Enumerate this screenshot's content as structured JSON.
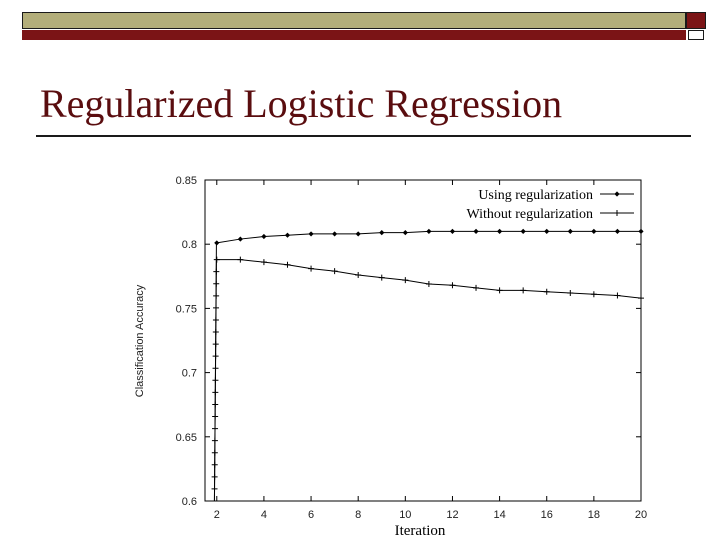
{
  "slide": {
    "title": "Regularized Logistic Regression"
  },
  "theme": {
    "olive": "#b3ae7a",
    "maroon": "#7b1416",
    "title_color": "#5a0d0f"
  },
  "chart_data": {
    "type": "line",
    "xlabel": "Iteration",
    "ylabel": "Classification Accuracy",
    "xlim": [
      1.5,
      20
    ],
    "ylim": [
      0.6,
      0.85
    ],
    "xticks": [
      "2",
      "4",
      "6",
      "8",
      "10",
      "12",
      "14",
      "16",
      "18",
      "20"
    ],
    "yticks": [
      "0.6",
      "0.65",
      "0.7",
      "0.75",
      "0.8",
      "0.85"
    ],
    "legend_position": "top-right",
    "series": [
      {
        "name": "Using regularization",
        "marker": "diamond",
        "x": [
          2,
          3,
          4,
          5,
          6,
          7,
          8,
          9,
          10,
          11,
          12,
          13,
          14,
          15,
          16,
          17,
          18,
          19,
          20
        ],
        "y": [
          0.801,
          0.804,
          0.806,
          0.807,
          0.808,
          0.808,
          0.808,
          0.809,
          0.809,
          0.81,
          0.81,
          0.81,
          0.81,
          0.81,
          0.81,
          0.81,
          0.81,
          0.81,
          0.81
        ]
      },
      {
        "name": "Without regularization",
        "marker": "plus",
        "x": [
          2,
          3,
          4,
          5,
          6,
          7,
          8,
          9,
          10,
          11,
          12,
          13,
          14,
          15,
          16,
          17,
          18,
          19,
          20
        ],
        "y": [
          0.788,
          0.788,
          0.786,
          0.784,
          0.781,
          0.779,
          0.776,
          0.774,
          0.772,
          0.769,
          0.768,
          0.766,
          0.764,
          0.764,
          0.763,
          0.762,
          0.761,
          0.76,
          0.758
        ]
      }
    ],
    "rise": {
      "x": 1.9,
      "y_start": 0.6,
      "steps": 20
    }
  }
}
